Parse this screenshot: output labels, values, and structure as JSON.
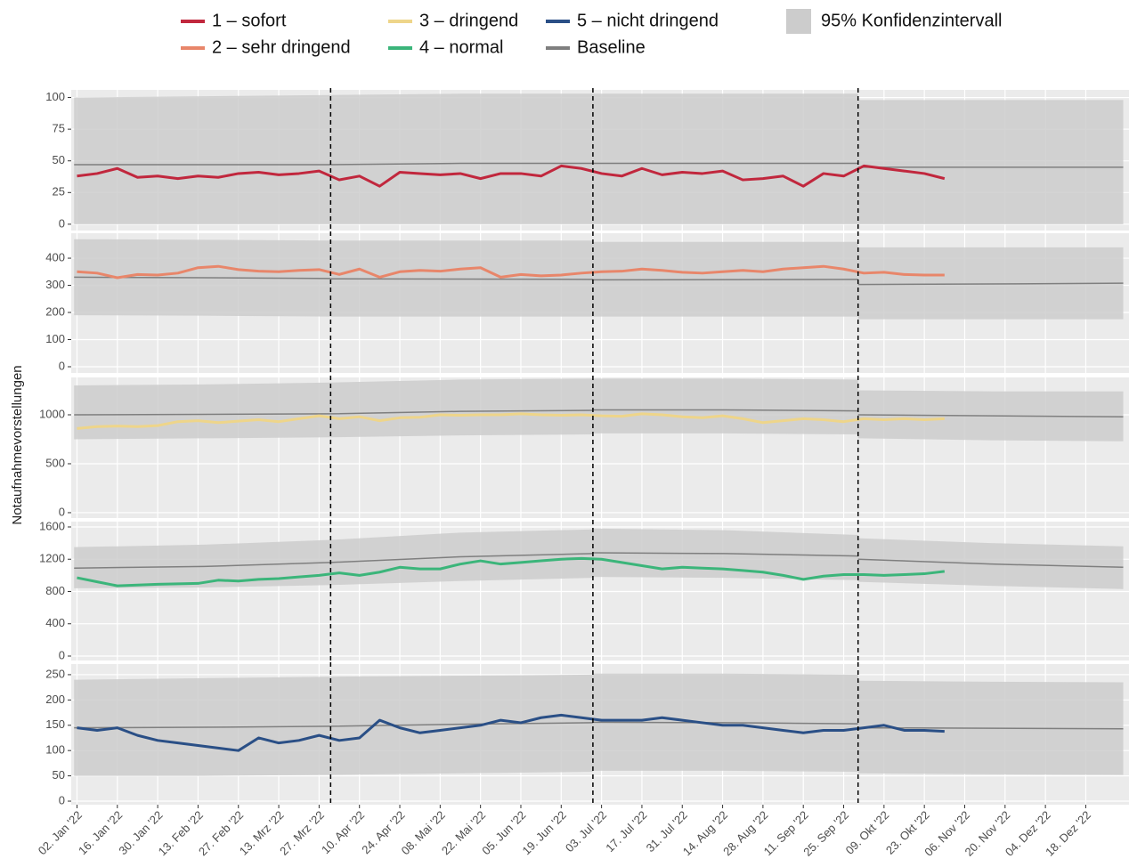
{
  "chart_data": {
    "type": "line",
    "ylabel": "Notaufnahmevorstellungen",
    "xlim": [
      "2021-12-31",
      "2023-01-02"
    ],
    "xticks": [
      {
        "value": "2022-01-02",
        "label": "02. Jan '22"
      },
      {
        "value": "2022-01-16",
        "label": "16. Jan '22"
      },
      {
        "value": "2022-01-30",
        "label": "30. Jan '22"
      },
      {
        "value": "2022-02-13",
        "label": "13. Feb '22"
      },
      {
        "value": "2022-02-27",
        "label": "27. Feb '22"
      },
      {
        "value": "2022-03-13",
        "label": "13. Mrz '22"
      },
      {
        "value": "2022-03-27",
        "label": "27. Mrz '22"
      },
      {
        "value": "2022-04-10",
        "label": "10. Apr '22"
      },
      {
        "value": "2022-04-24",
        "label": "24. Apr '22"
      },
      {
        "value": "2022-05-08",
        "label": "08. Mai '22"
      },
      {
        "value": "2022-05-22",
        "label": "22. Mai '22"
      },
      {
        "value": "2022-06-05",
        "label": "05. Jun '22"
      },
      {
        "value": "2022-06-19",
        "label": "19. Jun '22"
      },
      {
        "value": "2022-07-03",
        "label": "03. Jul '22"
      },
      {
        "value": "2022-07-17",
        "label": "17. Jul '22"
      },
      {
        "value": "2022-07-31",
        "label": "31. Jul '22"
      },
      {
        "value": "2022-08-14",
        "label": "14. Aug '22"
      },
      {
        "value": "2022-08-28",
        "label": "28. Aug '22"
      },
      {
        "value": "2022-09-11",
        "label": "11. Sep '22"
      },
      {
        "value": "2022-09-25",
        "label": "25. Sep '22"
      },
      {
        "value": "2022-10-09",
        "label": "09. Okt '22"
      },
      {
        "value": "2022-10-23",
        "label": "23. Okt '22"
      },
      {
        "value": "2022-11-06",
        "label": "06. Nov '22"
      },
      {
        "value": "2022-11-20",
        "label": "20. Nov '22"
      },
      {
        "value": "2022-12-04",
        "label": "04. Dez '22"
      },
      {
        "value": "2022-12-18",
        "label": "18. Dez '22"
      }
    ],
    "vlines": [
      "2022-03-31",
      "2022-06-30",
      "2022-09-30"
    ],
    "grid": true,
    "baseline": {
      "name": "Baseline",
      "color": "#7f7f7f"
    },
    "interval": {
      "name": "95% Konfidenzintervall",
      "color": "#cccccc"
    },
    "x": [
      "2022-01-02",
      "2022-01-09",
      "2022-01-16",
      "2022-01-23",
      "2022-01-30",
      "2022-02-06",
      "2022-02-13",
      "2022-02-20",
      "2022-02-27",
      "2022-03-06",
      "2022-03-13",
      "2022-03-20",
      "2022-03-27",
      "2022-04-03",
      "2022-04-10",
      "2022-04-17",
      "2022-04-24",
      "2022-05-01",
      "2022-05-08",
      "2022-05-15",
      "2022-05-22",
      "2022-05-29",
      "2022-06-05",
      "2022-06-12",
      "2022-06-19",
      "2022-06-26",
      "2022-07-03",
      "2022-07-10",
      "2022-07-17",
      "2022-07-24",
      "2022-07-31",
      "2022-08-07",
      "2022-08-14",
      "2022-08-21",
      "2022-08-28",
      "2022-09-04",
      "2022-09-11",
      "2022-09-18",
      "2022-09-25",
      "2022-10-02",
      "2022-10-09",
      "2022-10-16",
      "2022-10-23",
      "2022-10-30"
    ],
    "band_x": [
      "2022-01-01",
      "2022-02-15",
      "2022-03-31",
      "2022-03-31",
      "2022-03-31",
      "2022-05-15",
      "2022-06-30",
      "2022-06-30",
      "2022-06-30",
      "2022-08-15",
      "2022-09-30",
      "2022-09-30",
      "2022-09-30",
      "2022-11-15",
      "2022-12-31"
    ],
    "panels": [
      {
        "ylim": [
          -5,
          106
        ],
        "yticks": [
          0,
          25,
          50,
          75,
          100
        ],
        "series": {
          "name": "1 – sofort",
          "color": "#c1273d",
          "values": [
            38,
            40,
            44,
            37,
            38,
            36,
            38,
            37,
            40,
            41,
            39,
            40,
            42,
            35,
            38,
            30,
            41,
            40,
            39,
            40,
            36,
            40,
            40,
            38,
            46,
            44,
            40,
            38,
            44,
            39,
            41,
            40,
            42,
            35,
            36,
            38,
            30,
            40,
            38,
            46,
            44,
            42,
            40,
            36
          ]
        },
        "baseline_values": [
          47,
          47,
          47,
          null,
          47,
          48,
          48,
          null,
          48,
          48,
          48,
          null,
          45,
          45,
          45
        ],
        "upper": [
          100,
          101,
          102,
          null,
          102,
          103,
          103,
          null,
          103,
          103,
          103,
          null,
          98,
          98,
          98
        ],
        "lower": [
          0,
          0,
          0,
          null,
          0,
          0,
          0,
          null,
          0,
          0,
          0,
          null,
          0,
          0,
          0
        ]
      },
      {
        "ylim": [
          -23,
          492
        ],
        "yticks": [
          0,
          100,
          200,
          300,
          400
        ],
        "series": {
          "name": "2 – sehr dringend",
          "color": "#e8866a",
          "values": [
            350,
            345,
            328,
            340,
            338,
            345,
            365,
            370,
            358,
            352,
            350,
            355,
            358,
            340,
            360,
            330,
            350,
            355,
            352,
            360,
            365,
            330,
            340,
            335,
            338,
            345,
            350,
            352,
            360,
            355,
            348,
            345,
            350,
            355,
            350,
            360,
            365,
            370,
            360,
            345,
            348,
            340,
            338,
            338
          ]
        },
        "baseline_values": [
          330,
          328,
          325,
          null,
          324,
          323,
          322,
          null,
          320,
          321,
          322,
          null,
          303,
          305,
          308
        ],
        "upper": [
          470,
          468,
          465,
          null,
          465,
          465,
          465,
          null,
          460,
          460,
          460,
          null,
          440,
          440,
          440
        ],
        "lower": [
          190,
          188,
          185,
          null,
          185,
          185,
          185,
          null,
          185,
          185,
          185,
          null,
          175,
          175,
          175
        ]
      },
      {
        "ylim": [
          -55,
          1382
        ],
        "yticks": [
          0,
          500,
          1000
        ],
        "series": {
          "name": "3 – dringend",
          "color": "#eed58a",
          "values": [
            860,
            880,
            885,
            880,
            890,
            930,
            940,
            920,
            935,
            950,
            930,
            960,
            990,
            960,
            980,
            940,
            970,
            975,
            1000,
            995,
            1000,
            1000,
            1010,
            1000,
            995,
            1000,
            990,
            985,
            1010,
            1000,
            980,
            970,
            990,
            960,
            920,
            940,
            960,
            950,
            930,
            960,
            950,
            960,
            950,
            960
          ]
        },
        "baseline_values": [
          1000,
          1005,
          1010,
          null,
          1010,
          1035,
          1045,
          null,
          1050,
          1050,
          1040,
          null,
          1000,
          990,
          980
        ],
        "upper": [
          1300,
          1310,
          1330,
          null,
          1330,
          1360,
          1370,
          null,
          1370,
          1370,
          1360,
          null,
          1250,
          1240,
          1240
        ],
        "lower": [
          750,
          760,
          770,
          null,
          770,
          790,
          800,
          null,
          810,
          810,
          800,
          null,
          760,
          740,
          730
        ]
      },
      {
        "ylim": [
          -55,
          1666
        ],
        "yticks": [
          0,
          400,
          800,
          1200,
          1600
        ],
        "series": {
          "name": "4 – normal",
          "color": "#3bb57a",
          "values": [
            970,
            920,
            870,
            880,
            890,
            895,
            900,
            940,
            930,
            950,
            960,
            980,
            1000,
            1030,
            1000,
            1040,
            1100,
            1080,
            1080,
            1140,
            1180,
            1140,
            1160,
            1180,
            1200,
            1210,
            1200,
            1160,
            1120,
            1080,
            1100,
            1090,
            1080,
            1060,
            1040,
            1000,
            950,
            990,
            1010,
            1010,
            1000,
            1010,
            1020,
            1050
          ]
        },
        "baseline_values": [
          1090,
          1110,
          1160,
          null,
          1160,
          1230,
          1270,
          null,
          1280,
          1270,
          1240,
          null,
          1200,
          1140,
          1100
        ],
        "upper": [
          1350,
          1380,
          1440,
          null,
          1440,
          1530,
          1570,
          null,
          1580,
          1560,
          1500,
          null,
          1460,
          1400,
          1360
        ],
        "lower": [
          840,
          850,
          880,
          null,
          880,
          930,
          970,
          null,
          980,
          970,
          940,
          null,
          920,
          870,
          830
        ]
      },
      {
        "ylim": [
          -7,
          271
        ],
        "yticks": [
          0,
          50,
          100,
          150,
          200,
          250
        ],
        "series": {
          "name": "5 – nicht dringend",
          "color": "#2a4f86",
          "values": [
            145,
            140,
            145,
            130,
            120,
            115,
            110,
            105,
            100,
            125,
            115,
            120,
            130,
            120,
            125,
            160,
            145,
            135,
            140,
            145,
            150,
            160,
            155,
            165,
            170,
            165,
            160,
            160,
            160,
            165,
            160,
            155,
            150,
            150,
            145,
            140,
            135,
            140,
            140,
            145,
            150,
            140,
            140,
            138
          ]
        },
        "baseline_values": [
          145,
          146,
          148,
          null,
          148,
          152,
          155,
          null,
          156,
          155,
          153,
          null,
          145,
          144,
          143
        ],
        "upper": [
          240,
          243,
          246,
          null,
          246,
          248,
          250,
          null,
          252,
          252,
          250,
          null,
          238,
          236,
          235
        ],
        "lower": [
          50,
          50,
          52,
          null,
          52,
          55,
          58,
          null,
          60,
          60,
          58,
          null,
          55,
          53,
          52
        ]
      }
    ]
  }
}
